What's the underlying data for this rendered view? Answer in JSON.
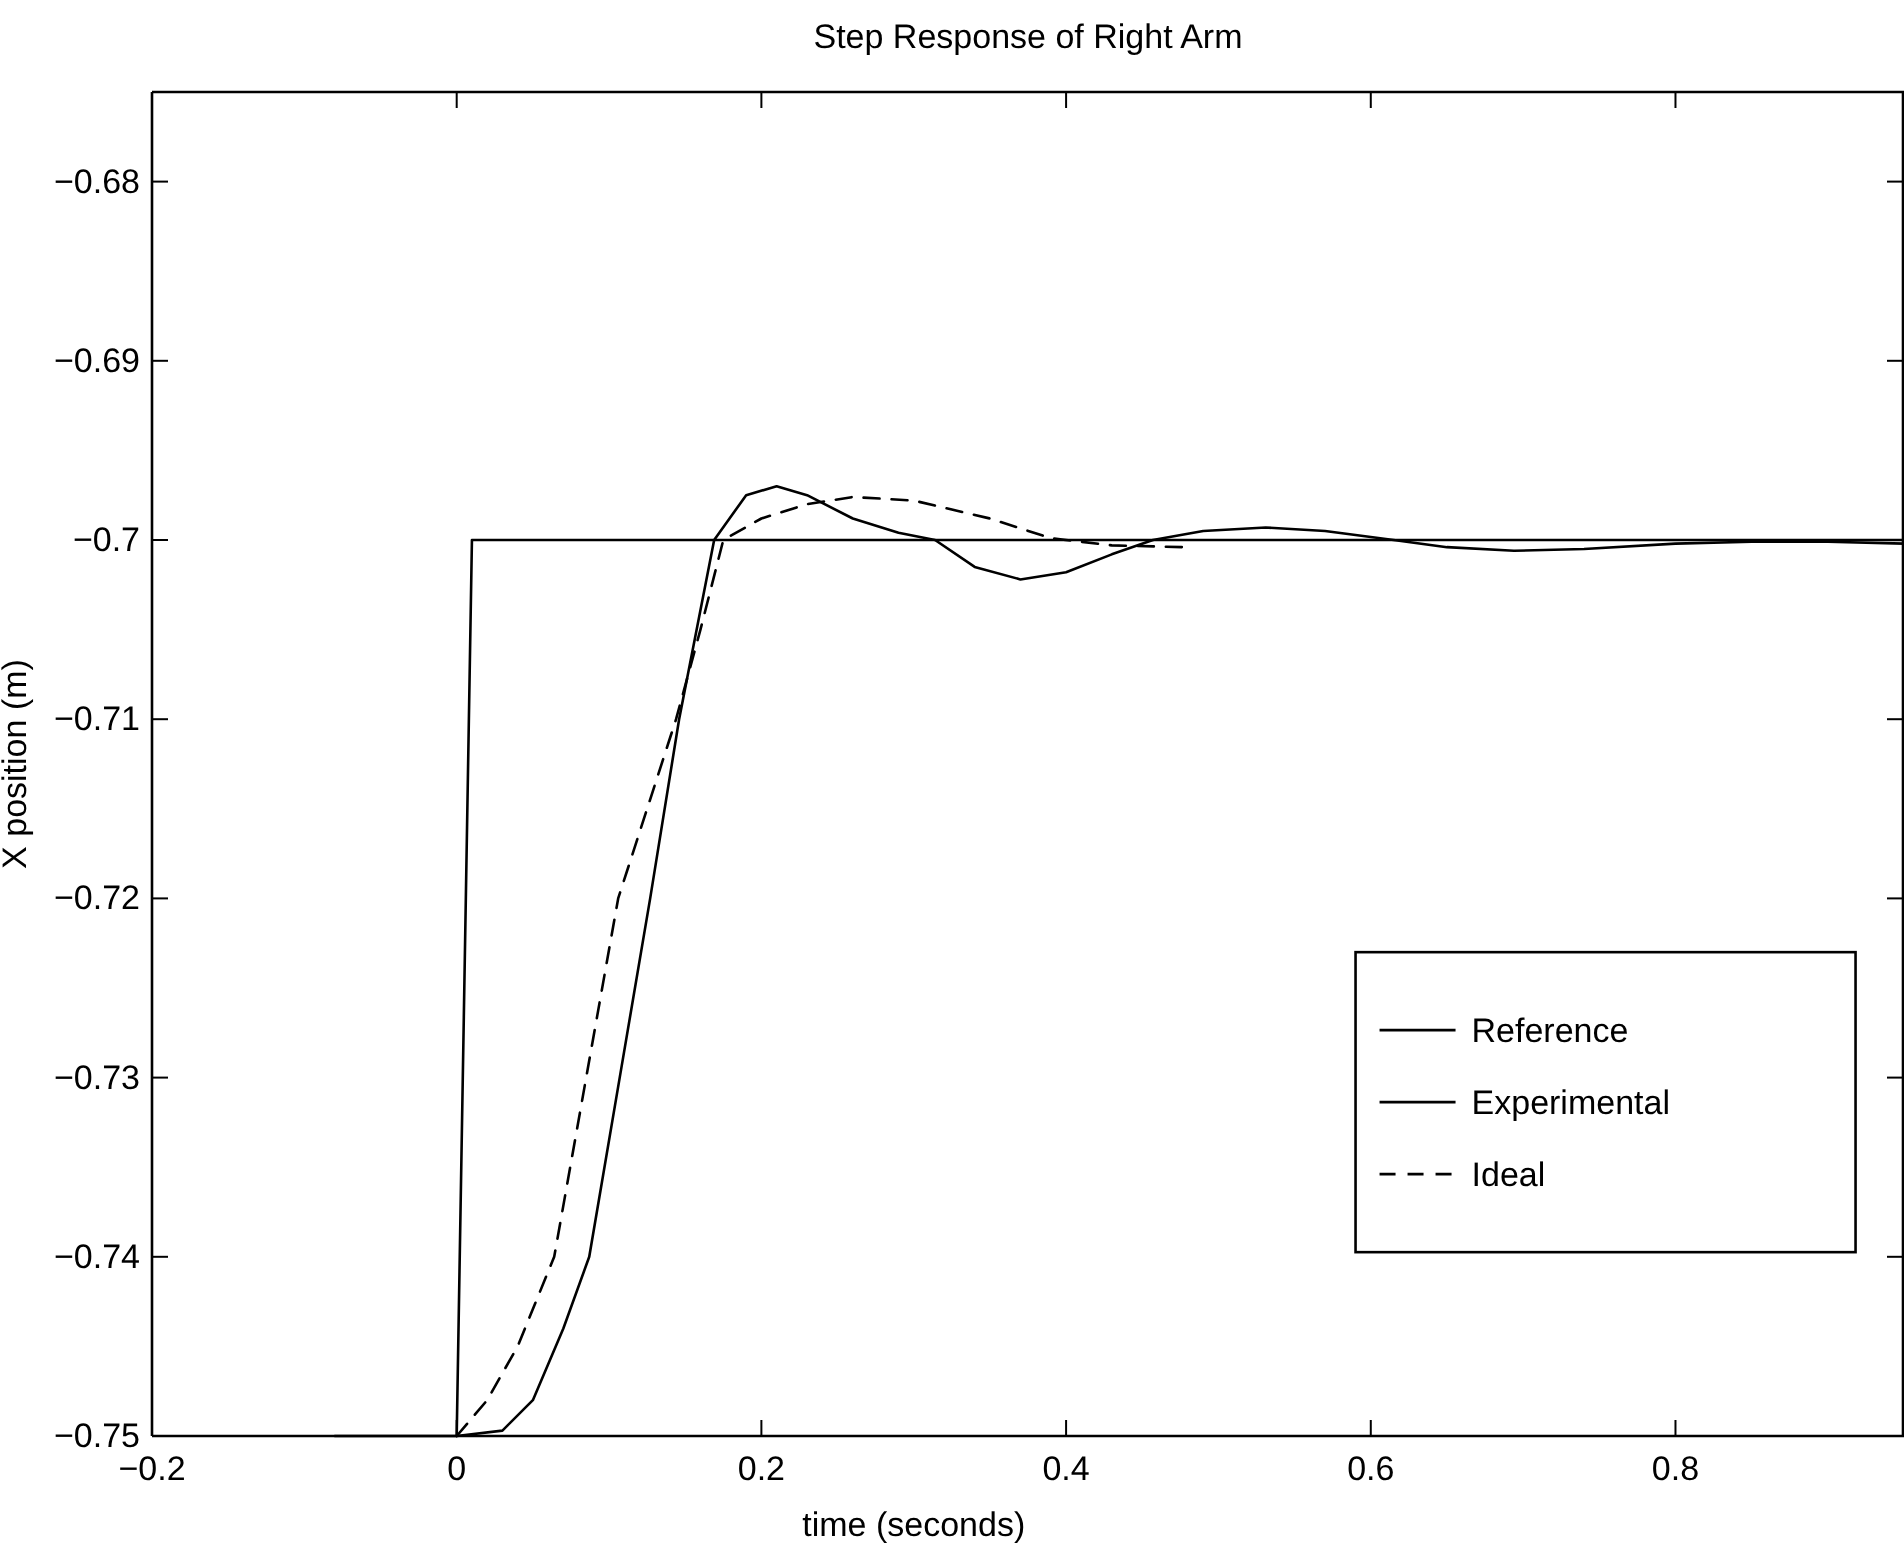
{
  "chart_data": {
    "type": "line",
    "title": "Step Response of Right Arm",
    "xlabel": "time (seconds)",
    "ylabel": "X position (m)",
    "xlim": [
      -0.2,
      0.95
    ],
    "xticks": [
      {
        "value": -0.2,
        "label": "−0.2"
      },
      0,
      0.2,
      0.4,
      0.6,
      0.8
    ],
    "ylim": [
      -0.75,
      -0.675
    ],
    "yticks": [
      {
        "value": -0.75,
        "label": "−0.75"
      },
      {
        "value": -0.74,
        "label": "−0.74"
      },
      {
        "value": -0.73,
        "label": "−0.73"
      },
      {
        "value": -0.72,
        "label": "−0.72"
      },
      {
        "value": -0.71,
        "label": "−0.71"
      },
      {
        "value": -0.7,
        "label": "−0.7"
      },
      {
        "value": -0.69,
        "label": "−0.69"
      },
      {
        "value": -0.68,
        "label": "−0.68"
      }
    ],
    "legend": "right",
    "grid": false,
    "series": [
      {
        "name": "Reference",
        "color": "#000000",
        "line_style": "solid",
        "x": [
          -0.08,
          0,
          0.01,
          0.95
        ],
        "values": [
          -0.75,
          -0.75,
          -0.7,
          -0.7
        ]
      },
      {
        "name": "Experimental",
        "color": "#000000",
        "line_style": "solid",
        "x": [
          0,
          0.03,
          0.05,
          0.07,
          0.087,
          0.107,
          0.127,
          0.146,
          0.169,
          0.19,
          0.21,
          0.23,
          0.26,
          0.29,
          0.314,
          0.34,
          0.37,
          0.4,
          0.43,
          0.457,
          0.49,
          0.531,
          0.57,
          0.615,
          0.65,
          0.694,
          0.74,
          0.8,
          0.85,
          0.9,
          0.95
        ],
        "values": [
          -0.75,
          -0.7497,
          -0.748,
          -0.744,
          -0.74,
          -0.73,
          -0.72,
          -0.71,
          -0.7,
          -0.6975,
          -0.697,
          -0.6975,
          -0.6988,
          -0.6996,
          -0.7,
          -0.7015,
          -0.7022,
          -0.7018,
          -0.7008,
          -0.7,
          -0.6995,
          -0.6993,
          -0.6995,
          -0.7,
          -0.7004,
          -0.7006,
          -0.7005,
          -0.7002,
          -0.7001,
          -0.7001,
          -0.7002
        ]
      },
      {
        "name": "Ideal",
        "color": "#000000",
        "line_style": "dashed",
        "x": [
          0,
          0.02,
          0.04,
          0.064,
          0.085,
          0.106,
          0.125,
          0.144,
          0.16,
          0.175,
          0.2,
          0.23,
          0.26,
          0.3,
          0.35,
          0.39,
          0.43,
          0.478
        ],
        "values": [
          -0.75,
          -0.748,
          -0.745,
          -0.74,
          -0.73,
          -0.72,
          -0.715,
          -0.71,
          -0.705,
          -0.7,
          -0.6988,
          -0.698,
          -0.6976,
          -0.6978,
          -0.6988,
          -0.6999,
          -0.7003,
          -0.7004
        ]
      }
    ]
  }
}
